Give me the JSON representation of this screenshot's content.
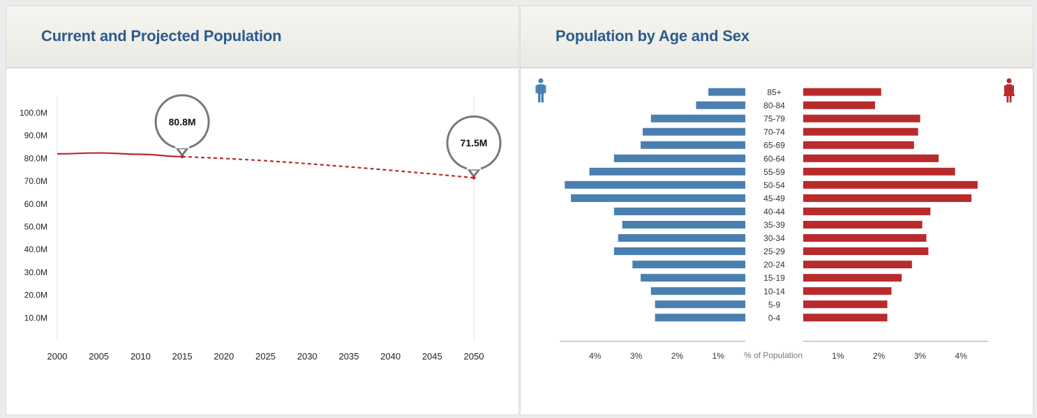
{
  "left_panel": {
    "title": "Current and Projected Population"
  },
  "right_panel": {
    "title": "Population by Age and Sex"
  },
  "colors": {
    "title": "#2b5c8e",
    "male": "#4a7fb0",
    "female": "#b72b2c",
    "line": "#b72b2c"
  },
  "icons": {
    "male": "male-person-icon",
    "female": "female-person-icon"
  },
  "chart_data": [
    {
      "type": "line",
      "title": "Current and Projected Population",
      "xlabel": "",
      "ylabel": "",
      "x_ticks": [
        "2000",
        "2005",
        "2010",
        "2015",
        "2020",
        "2025",
        "2030",
        "2035",
        "2040",
        "2045",
        "2050"
      ],
      "y_ticks": [
        "100.0M",
        "90.0M",
        "80.0M",
        "70.0M",
        "60.0M",
        "50.0M",
        "40.0M",
        "30.0M",
        "20.0M",
        "10.0M"
      ],
      "xlim": [
        2000,
        2050
      ],
      "ylim": [
        0,
        110
      ],
      "unit": "M",
      "series": [
        {
          "style": "solid",
          "x": [
            2000,
            2005,
            2010,
            2015
          ],
          "y": [
            82.0,
            82.4,
            81.8,
            80.8
          ]
        },
        {
          "style": "dashed",
          "x": [
            2015,
            2020,
            2025,
            2030,
            2035,
            2040,
            2045,
            2050
          ],
          "y": [
            80.8,
            80.0,
            79.0,
            77.7,
            76.3,
            74.8,
            73.2,
            71.5
          ]
        }
      ],
      "callouts": [
        {
          "x": 2015,
          "y": 80.8,
          "label": "80.8M"
        },
        {
          "x": 2050,
          "y": 71.5,
          "label": "71.5M"
        }
      ]
    },
    {
      "type": "bar",
      "orientation": "horizontal",
      "title": "Population by Age and Sex",
      "xlabel": "% of Population",
      "x_ticks_left": [
        "4%",
        "3%",
        "2%",
        "1%"
      ],
      "x_ticks_right": [
        "1%",
        "2%",
        "3%",
        "4%"
      ],
      "xlim": [
        0,
        4.5
      ],
      "categories": [
        "85+",
        "80-84",
        "75-79",
        "70-74",
        "65-69",
        "60-64",
        "55-59",
        "50-54",
        "45-49",
        "40-44",
        "35-39",
        "30-34",
        "25-29",
        "20-24",
        "15-19",
        "10-14",
        "5-9",
        "0-4"
      ],
      "series": [
        {
          "sex": "male",
          "values": [
            0.9,
            1.2,
            2.3,
            2.5,
            2.55,
            3.2,
            3.8,
            4.4,
            4.25,
            3.2,
            3.0,
            3.1,
            3.2,
            2.75,
            2.55,
            2.3,
            2.2,
            2.2
          ]
        },
        {
          "sex": "female",
          "values": [
            1.9,
            1.75,
            2.85,
            2.8,
            2.7,
            3.3,
            3.7,
            4.25,
            4.1,
            3.1,
            2.9,
            3.0,
            3.05,
            2.65,
            2.4,
            2.15,
            2.05,
            2.05
          ]
        }
      ]
    }
  ]
}
